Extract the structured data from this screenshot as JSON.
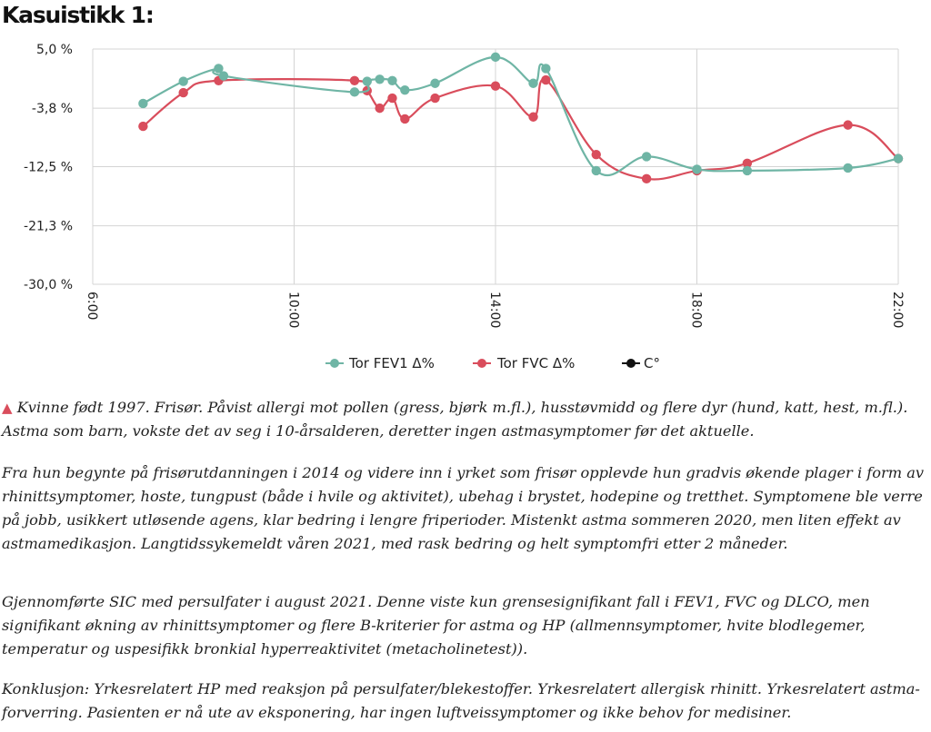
{
  "heading": "Kasuistikk 1:",
  "chart_data": {
    "type": "line",
    "xlabel": "",
    "ylabel": "",
    "xlim": [
      6,
      22
    ],
    "ylim": [
      -30,
      5
    ],
    "x_ticks": [
      6,
      10,
      14,
      18,
      22
    ],
    "x_tick_labels": [
      "6:00",
      "10:00",
      "14:00",
      "18:00",
      "22:00"
    ],
    "y_ticks": [
      5,
      -3.8,
      -12.5,
      -21.3,
      -30
    ],
    "y_tick_labels": [
      "5,0 %",
      "-3,8 %",
      "-12,5 %",
      "-21,3 %",
      "-30,0 %"
    ],
    "grid": true,
    "legend_position": "bottom",
    "series": [
      {
        "name": "Tor FEV1 Δ%",
        "color": "#6fb5a5",
        "x": [
          7,
          7.8,
          8.5,
          8.6,
          11.2,
          11.45,
          11.7,
          11.95,
          12.2,
          12.8,
          14,
          14.75,
          15,
          16,
          17,
          18,
          19,
          21,
          22
        ],
        "y": [
          -3.1,
          0.2,
          2.1,
          1.0,
          -1.4,
          0.2,
          0.5,
          0.3,
          -1.1,
          -0.1,
          3.8,
          -0.1,
          2.1,
          -13.1,
          -11.0,
          -12.9,
          -13.1,
          -12.7,
          -11.3
        ]
      },
      {
        "name": "Tor FVC Δ%",
        "color": "#d94d5c",
        "x": [
          7,
          7.8,
          8.5,
          11.2,
          11.45,
          11.7,
          11.95,
          12.2,
          12.8,
          14,
          14.75,
          15,
          16,
          17,
          18,
          19,
          21,
          22
        ],
        "y": [
          -6.5,
          -1.5,
          0.3,
          0.3,
          -1.2,
          -3.8,
          -2.3,
          -5.4,
          -2.3,
          -0.5,
          -5.1,
          0.4,
          -10.7,
          -14.3,
          -13.1,
          -12.0,
          -6.3,
          -11.3
        ]
      },
      {
        "name": "C°",
        "color": "#111111",
        "x": [],
        "y": []
      }
    ]
  },
  "paragraphs": [
    {
      "marker": "▲",
      "text": "Kvinne født 1997. Frisør. Påvist allergi mot pollen (gress, bjørk m.fl.), husstøvmidd og flere dyr (hund, katt, hest, m.fl.). Astma som barn, vokste det av seg i 10-årsalderen, deretter ingen astmasymptomer før det aktuelle."
    },
    {
      "text": "Fra hun begynte på frisørutdanningen i 2014 og videre inn i yrket som frisør opplevde hun gradvis økende plager i form av rhinittsymptomer, hoste, tungpust (både i hvile og aktivitet), ubehag i brystet, hodepine og tretthet. Symptomene ble verre på jobb, usikkert utløsende agens, klar bedring i lengre friperioder. Mistenkt astma sommeren 2020, men liten effekt av astmamedikasjon. Langtidssykemeldt våren 2021, med rask bedring og helt symptomfri etter 2 måneder."
    },
    {
      "text": "Gjennomførte SIC med persulfater i august 2021. Denne viste kun grensesignifikant fall i FEV1, FVC og DLCO, men signifikant økning av rhinittsymptomer og flere B-kriterier for astma og HP (allmennsymptomer, hvite blodlegemer, temperatur og uspesifikk bronkial hyperreaktivitet (metacholinetest))."
    },
    {
      "text": "Konklusjon: Yrkesrelatert HP med reaksjon på persulfater/blekestoffer. Yrkesrelatert allergisk rhinitt. Yrkesrelatert astma-forverring. Pasienten er nå ute av eksponering, har ingen luftveissymptomer og ikke behov for medisiner."
    }
  ]
}
